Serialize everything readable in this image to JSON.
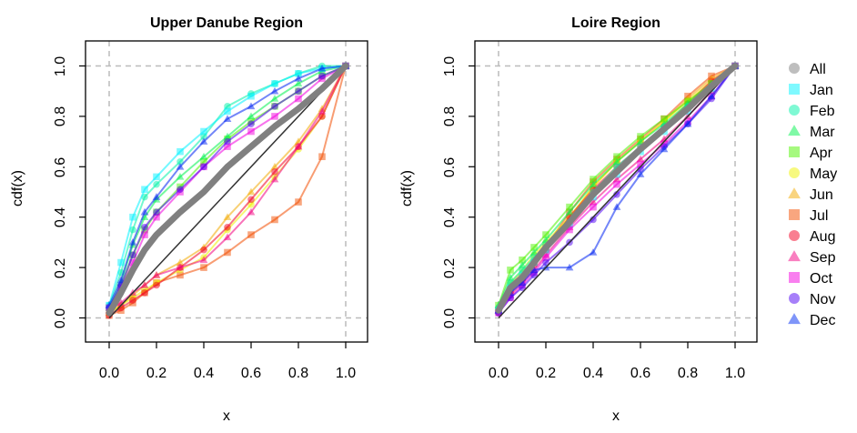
{
  "chart_data": [
    {
      "type": "line",
      "title": "Upper Danube Region",
      "xlabel": "x",
      "ylabel": "cdf(x)",
      "xlim": [
        -0.1,
        1.1
      ],
      "ylim": [
        -0.1,
        1.1
      ],
      "xticks": [
        "0.0",
        "0.2",
        "0.4",
        "0.6",
        "0.8",
        "1.0"
      ],
      "yticks": [
        "0.0",
        "0.2",
        "0.4",
        "0.6",
        "0.8",
        "1.0"
      ],
      "series": [
        {
          "name": "Jan",
          "x": [
            0,
            0.05,
            0.1,
            0.15,
            0.2,
            0.3,
            0.4,
            0.5,
            0.6,
            0.7,
            0.8,
            0.9,
            1.0
          ],
          "y": [
            0.05,
            0.22,
            0.4,
            0.51,
            0.56,
            0.66,
            0.74,
            0.82,
            0.88,
            0.93,
            0.97,
            0.99,
            1.0
          ]
        },
        {
          "name": "Feb",
          "x": [
            0,
            0.05,
            0.1,
            0.15,
            0.2,
            0.3,
            0.4,
            0.5,
            0.6,
            0.7,
            0.8,
            0.9,
            1.0
          ],
          "y": [
            0.05,
            0.18,
            0.35,
            0.48,
            0.53,
            0.62,
            0.72,
            0.84,
            0.89,
            0.93,
            0.97,
            1.0,
            1.0
          ]
        },
        {
          "name": "Mar",
          "x": [
            0,
            0.05,
            0.1,
            0.15,
            0.2,
            0.3,
            0.4,
            0.5,
            0.6,
            0.7,
            0.8,
            0.9,
            1.0
          ],
          "y": [
            0.04,
            0.14,
            0.29,
            0.4,
            0.47,
            0.56,
            0.64,
            0.72,
            0.8,
            0.87,
            0.93,
            0.98,
            1.0
          ]
        },
        {
          "name": "Apr",
          "x": [
            0,
            0.05,
            0.1,
            0.15,
            0.2,
            0.3,
            0.4,
            0.5,
            0.6,
            0.7,
            0.8,
            0.9,
            1.0
          ],
          "y": [
            0.04,
            0.12,
            0.25,
            0.35,
            0.42,
            0.52,
            0.62,
            0.71,
            0.78,
            0.84,
            0.9,
            0.96,
            1.0
          ]
        },
        {
          "name": "May",
          "x": [
            0,
            0.05,
            0.1,
            0.15,
            0.2,
            0.3,
            0.4,
            0.5,
            0.6,
            0.7,
            0.8,
            0.9,
            1.0
          ],
          "y": [
            0.02,
            0.05,
            0.08,
            0.11,
            0.14,
            0.19,
            0.24,
            0.35,
            0.45,
            0.56,
            0.67,
            0.8,
            1.0
          ]
        },
        {
          "name": "Jun",
          "x": [
            0,
            0.05,
            0.1,
            0.15,
            0.2,
            0.3,
            0.4,
            0.5,
            0.6,
            0.7,
            0.8,
            0.9,
            1.0
          ],
          "y": [
            0.02,
            0.05,
            0.09,
            0.13,
            0.17,
            0.22,
            0.28,
            0.4,
            0.5,
            0.6,
            0.7,
            0.83,
            1.0
          ]
        },
        {
          "name": "Jul",
          "x": [
            0,
            0.05,
            0.1,
            0.15,
            0.2,
            0.3,
            0.4,
            0.5,
            0.6,
            0.7,
            0.8,
            0.9,
            1.0
          ],
          "y": [
            0.01,
            0.03,
            0.06,
            0.1,
            0.14,
            0.17,
            0.2,
            0.26,
            0.33,
            0.39,
            0.46,
            0.64,
            1.0
          ]
        },
        {
          "name": "Aug",
          "x": [
            0,
            0.05,
            0.1,
            0.15,
            0.2,
            0.3,
            0.4,
            0.5,
            0.6,
            0.7,
            0.8,
            0.9,
            1.0
          ],
          "y": [
            0.01,
            0.04,
            0.07,
            0.1,
            0.13,
            0.2,
            0.27,
            0.36,
            0.47,
            0.58,
            0.68,
            0.8,
            1.0
          ]
        },
        {
          "name": "Sep",
          "x": [
            0,
            0.05,
            0.1,
            0.15,
            0.2,
            0.3,
            0.4,
            0.5,
            0.6,
            0.7,
            0.8,
            0.9,
            1.0
          ],
          "y": [
            0.03,
            0.06,
            0.1,
            0.13,
            0.17,
            0.2,
            0.23,
            0.32,
            0.42,
            0.55,
            0.68,
            0.82,
            1.0
          ]
        },
        {
          "name": "Oct",
          "x": [
            0,
            0.05,
            0.1,
            0.15,
            0.2,
            0.3,
            0.4,
            0.5,
            0.6,
            0.7,
            0.8,
            0.9,
            1.0
          ],
          "y": [
            0.04,
            0.12,
            0.22,
            0.33,
            0.4,
            0.5,
            0.6,
            0.68,
            0.74,
            0.8,
            0.87,
            0.95,
            1.0
          ]
        },
        {
          "name": "Nov",
          "x": [
            0,
            0.05,
            0.1,
            0.15,
            0.2,
            0.3,
            0.4,
            0.5,
            0.6,
            0.7,
            0.8,
            0.9,
            1.0
          ],
          "y": [
            0.04,
            0.13,
            0.25,
            0.36,
            0.42,
            0.51,
            0.6,
            0.7,
            0.77,
            0.84,
            0.9,
            0.96,
            1.0
          ]
        },
        {
          "name": "Dec",
          "x": [
            0,
            0.05,
            0.1,
            0.15,
            0.2,
            0.3,
            0.4,
            0.5,
            0.6,
            0.7,
            0.8,
            0.9,
            1.0
          ],
          "y": [
            0.05,
            0.15,
            0.3,
            0.42,
            0.48,
            0.6,
            0.7,
            0.79,
            0.84,
            0.9,
            0.95,
            0.99,
            1.0
          ]
        },
        {
          "name": "All",
          "x": [
            0,
            0.05,
            0.1,
            0.15,
            0.2,
            0.3,
            0.4,
            0.5,
            0.6,
            0.7,
            0.8,
            0.9,
            1.0
          ],
          "y": [
            0.02,
            0.1,
            0.19,
            0.27,
            0.33,
            0.42,
            0.5,
            0.6,
            0.68,
            0.76,
            0.83,
            0.91,
            1.0
          ]
        }
      ]
    },
    {
      "type": "line",
      "title": "Loire Region",
      "xlabel": "x",
      "ylabel": "cdf(x)",
      "xlim": [
        -0.1,
        1.1
      ],
      "ylim": [
        -0.1,
        1.1
      ],
      "xticks": [
        "0.0",
        "0.2",
        "0.4",
        "0.6",
        "0.8",
        "1.0"
      ],
      "yticks": [
        "0.0",
        "0.2",
        "0.4",
        "0.6",
        "0.8",
        "1.0"
      ],
      "series": [
        {
          "name": "Jan",
          "x": [
            0,
            0.05,
            0.1,
            0.15,
            0.2,
            0.3,
            0.4,
            0.5,
            0.6,
            0.7,
            0.8,
            0.9,
            1.0
          ],
          "y": [
            0.03,
            0.12,
            0.17,
            0.22,
            0.27,
            0.37,
            0.48,
            0.57,
            0.66,
            0.74,
            0.82,
            0.91,
            1.0
          ]
        },
        {
          "name": "Feb",
          "x": [
            0,
            0.05,
            0.1,
            0.15,
            0.2,
            0.3,
            0.4,
            0.5,
            0.6,
            0.7,
            0.8,
            0.9,
            1.0
          ],
          "y": [
            0.04,
            0.14,
            0.19,
            0.24,
            0.29,
            0.38,
            0.5,
            0.6,
            0.68,
            0.76,
            0.84,
            0.92,
            1.0
          ]
        },
        {
          "name": "Mar",
          "x": [
            0,
            0.05,
            0.1,
            0.15,
            0.2,
            0.3,
            0.4,
            0.5,
            0.6,
            0.7,
            0.8,
            0.9,
            1.0
          ],
          "y": [
            0.05,
            0.16,
            0.21,
            0.26,
            0.31,
            0.42,
            0.53,
            0.62,
            0.7,
            0.77,
            0.85,
            0.93,
            1.0
          ]
        },
        {
          "name": "Apr",
          "x": [
            0,
            0.05,
            0.1,
            0.15,
            0.2,
            0.3,
            0.4,
            0.5,
            0.6,
            0.7,
            0.8,
            0.9,
            1.0
          ],
          "y": [
            0.05,
            0.19,
            0.23,
            0.28,
            0.33,
            0.44,
            0.55,
            0.64,
            0.72,
            0.79,
            0.86,
            0.93,
            1.0
          ]
        },
        {
          "name": "May",
          "x": [
            0,
            0.05,
            0.1,
            0.15,
            0.2,
            0.3,
            0.4,
            0.5,
            0.6,
            0.7,
            0.8,
            0.9,
            1.0
          ],
          "y": [
            0.04,
            0.14,
            0.19,
            0.25,
            0.3,
            0.4,
            0.52,
            0.62,
            0.7,
            0.78,
            0.86,
            0.94,
            1.0
          ]
        },
        {
          "name": "Jun",
          "x": [
            0,
            0.05,
            0.1,
            0.15,
            0.2,
            0.3,
            0.4,
            0.5,
            0.6,
            0.7,
            0.8,
            0.9,
            1.0
          ],
          "y": [
            0.04,
            0.13,
            0.18,
            0.23,
            0.29,
            0.4,
            0.52,
            0.62,
            0.7,
            0.78,
            0.87,
            0.95,
            1.0
          ]
        },
        {
          "name": "Jul",
          "x": [
            0,
            0.05,
            0.1,
            0.15,
            0.2,
            0.3,
            0.4,
            0.5,
            0.6,
            0.7,
            0.8,
            0.9,
            1.0
          ],
          "y": [
            0.03,
            0.11,
            0.16,
            0.22,
            0.28,
            0.42,
            0.54,
            0.63,
            0.71,
            0.79,
            0.88,
            0.96,
            1.0
          ]
        },
        {
          "name": "Aug",
          "x": [
            0,
            0.05,
            0.1,
            0.15,
            0.2,
            0.3,
            0.4,
            0.5,
            0.6,
            0.7,
            0.8,
            0.9,
            1.0
          ],
          "y": [
            0.02,
            0.1,
            0.15,
            0.21,
            0.27,
            0.4,
            0.51,
            0.6,
            0.68,
            0.76,
            0.85,
            0.94,
            1.0
          ]
        },
        {
          "name": "Sep",
          "x": [
            0,
            0.05,
            0.1,
            0.15,
            0.2,
            0.3,
            0.4,
            0.5,
            0.6,
            0.7,
            0.8,
            0.9,
            1.0
          ],
          "y": [
            0.03,
            0.09,
            0.14,
            0.19,
            0.25,
            0.36,
            0.46,
            0.55,
            0.63,
            0.71,
            0.8,
            0.9,
            1.0
          ]
        },
        {
          "name": "Oct",
          "x": [
            0,
            0.05,
            0.1,
            0.15,
            0.2,
            0.3,
            0.4,
            0.5,
            0.6,
            0.7,
            0.8,
            0.9,
            1.0
          ],
          "y": [
            0.02,
            0.08,
            0.13,
            0.18,
            0.24,
            0.35,
            0.44,
            0.53,
            0.61,
            0.69,
            0.78,
            0.88,
            1.0
          ]
        },
        {
          "name": "Nov",
          "x": [
            0,
            0.05,
            0.1,
            0.15,
            0.2,
            0.3,
            0.4,
            0.5,
            0.6,
            0.7,
            0.8,
            0.9,
            1.0
          ],
          "y": [
            0.02,
            0.08,
            0.12,
            0.17,
            0.22,
            0.3,
            0.39,
            0.49,
            0.59,
            0.68,
            0.77,
            0.87,
            1.0
          ]
        },
        {
          "name": "Dec",
          "x": [
            0,
            0.05,
            0.1,
            0.15,
            0.2,
            0.3,
            0.4,
            0.5,
            0.6,
            0.7,
            0.8,
            0.9,
            1.0
          ],
          "y": [
            0.03,
            0.1,
            0.14,
            0.19,
            0.2,
            0.2,
            0.26,
            0.44,
            0.57,
            0.67,
            0.77,
            0.88,
            1.0
          ]
        },
        {
          "name": "All",
          "x": [
            0,
            0.05,
            0.1,
            0.15,
            0.2,
            0.3,
            0.4,
            0.5,
            0.6,
            0.7,
            0.8,
            0.9,
            1.0
          ],
          "y": [
            0.03,
            0.12,
            0.16,
            0.22,
            0.28,
            0.38,
            0.49,
            0.58,
            0.67,
            0.75,
            0.83,
            0.92,
            1.0
          ]
        }
      ]
    }
  ],
  "legend": {
    "placement": "right",
    "entries": [
      {
        "name": "All",
        "color": "#bebebe",
        "marker": "circle"
      },
      {
        "name": "Jan",
        "color": "#7ff9ff",
        "marker": "square"
      },
      {
        "name": "Feb",
        "color": "#7ff9d4",
        "marker": "circle"
      },
      {
        "name": "Mar",
        "color": "#7ff9a6",
        "marker": "triangle"
      },
      {
        "name": "Apr",
        "color": "#a6f97f",
        "marker": "square"
      },
      {
        "name": "May",
        "color": "#f7f97f",
        "marker": "circle"
      },
      {
        "name": "Jun",
        "color": "#f9d47f",
        "marker": "triangle"
      },
      {
        "name": "Jul",
        "color": "#f9a67f",
        "marker": "square"
      },
      {
        "name": "Aug",
        "color": "#f97f91",
        "marker": "circle"
      },
      {
        "name": "Sep",
        "color": "#f97fc0",
        "marker": "triangle"
      },
      {
        "name": "Oct",
        "color": "#f97fef",
        "marker": "square"
      },
      {
        "name": "Nov",
        "color": "#a67ff9",
        "marker": "circle"
      },
      {
        "name": "Dec",
        "color": "#7f95f9",
        "marker": "triangle"
      }
    ]
  },
  "colors": {
    "Jan": "#00f2ff",
    "Feb": "#00f2aa",
    "Mar": "#00f24d",
    "Apr": "#4df200",
    "May": "#eef200",
    "Jun": "#f2aa00",
    "Jul": "#f24d00",
    "Aug": "#f20022",
    "Sep": "#f20080",
    "Oct": "#f200de",
    "Nov": "#4d00f2",
    "Dec": "#0022f2",
    "All": "#808080",
    "diagonal": "#333333",
    "reference": "#bbbbbb"
  },
  "grid": false,
  "reference_lines": [
    0,
    1
  ]
}
